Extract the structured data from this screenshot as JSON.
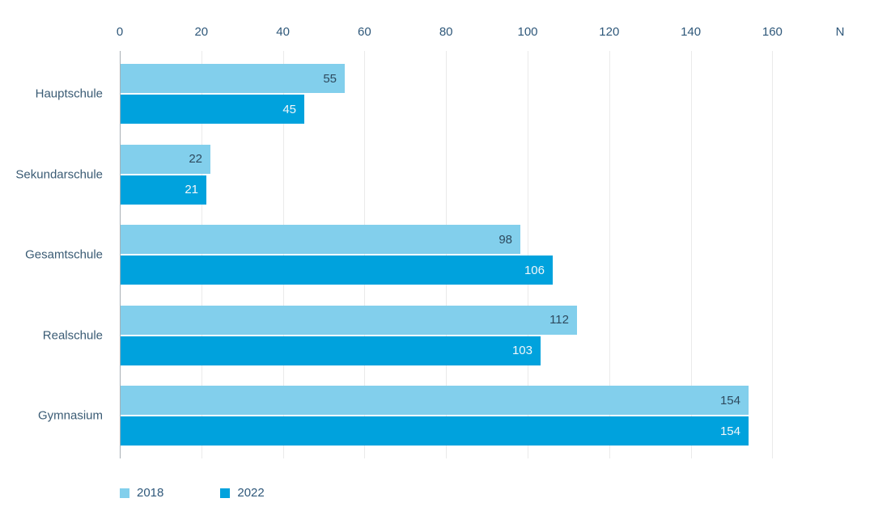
{
  "chart_data": {
    "type": "bar",
    "orientation": "horizontal",
    "title": "",
    "axis_title": "N",
    "categories": [
      "Hauptschule",
      "Sekundarschule",
      "Gesamtschule",
      "Realschule",
      "Gymnasium"
    ],
    "series": [
      {
        "name": "2018",
        "color": "#82CFEC",
        "values": [
          55,
          22,
          98,
          112,
          154
        ]
      },
      {
        "name": "2022",
        "color": "#00A2DD",
        "values": [
          45,
          21,
          106,
          103,
          154
        ]
      }
    ],
    "x_ticks": [
      "0",
      "20",
      "40",
      "60",
      "80",
      "100",
      "120",
      "140",
      "160"
    ],
    "xlim": [
      0,
      176
    ],
    "grid": true,
    "axis_position": "top",
    "legend_position": "bottom"
  },
  "colors": {
    "axis_text": "#2F587A",
    "category_text": "#3A5B74",
    "value_on_light": "#2E4A5E",
    "value_on_dark": "#F2F7FA",
    "gridline": "#EAEAEA",
    "zero_line": "#A9B0B5",
    "background": "#FFFFFF"
  }
}
